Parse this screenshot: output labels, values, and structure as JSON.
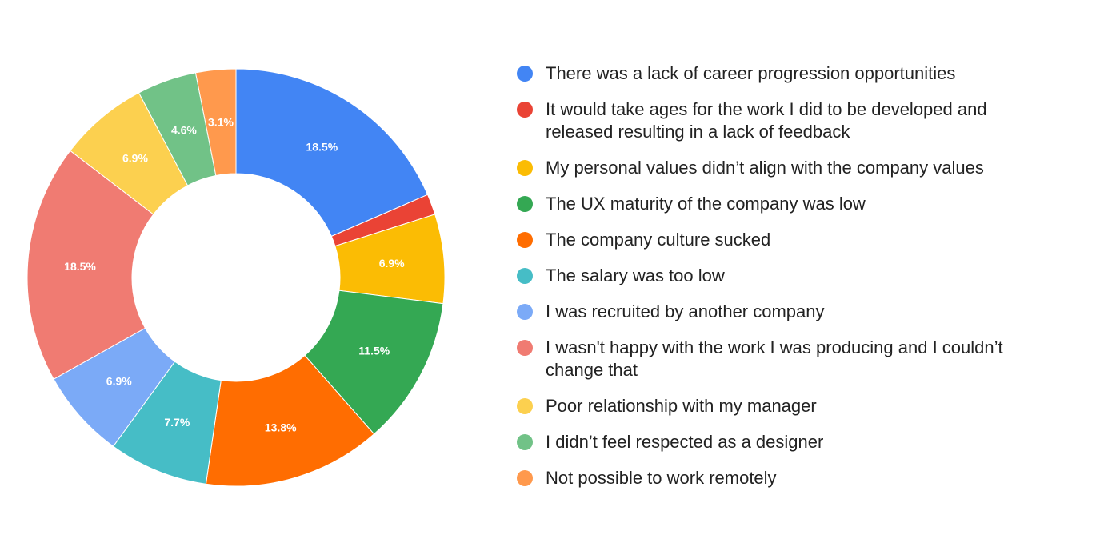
{
  "chart_data": {
    "type": "pie",
    "donut": true,
    "title": "",
    "legend_position": "right",
    "slices": [
      {
        "label": "There was a lack of career progression opportunities",
        "value": 18.5,
        "display": "18.5%",
        "color": "#4285F4"
      },
      {
        "label": "It would take ages for the work I did to be developed and released resulting in a lack of feedback",
        "value": 1.6,
        "display": "",
        "color": "#EA4335"
      },
      {
        "label": "My personal values didn’t align with the company values",
        "value": 6.9,
        "display": "6.9%",
        "color": "#FBBC04"
      },
      {
        "label": "The UX maturity of the company was low",
        "value": 11.5,
        "display": "11.5%",
        "color": "#34A853"
      },
      {
        "label": "The company culture sucked",
        "value": 13.8,
        "display": "13.8%",
        "color": "#FF6D01"
      },
      {
        "label": "The salary was too low",
        "value": 7.7,
        "display": "7.7%",
        "color": "#46BDC6"
      },
      {
        "label": "I was recruited by another company",
        "value": 6.9,
        "display": "6.9%",
        "color": "#7BAAF7"
      },
      {
        "label": "I wasn't happy with the work I was producing and I couldn’t change that",
        "value": 18.5,
        "display": "18.5%",
        "color": "#F07B72"
      },
      {
        "label": "Poor relationship with my manager",
        "value": 6.9,
        "display": "6.9%",
        "color": "#FCD04F"
      },
      {
        "label": "I didn’t feel respected as a designer",
        "value": 4.6,
        "display": "4.6%",
        "color": "#71C287"
      },
      {
        "label": "Not possible to work remotely",
        "value": 3.1,
        "display": "3.1%",
        "color": "#FF994D"
      }
    ]
  }
}
